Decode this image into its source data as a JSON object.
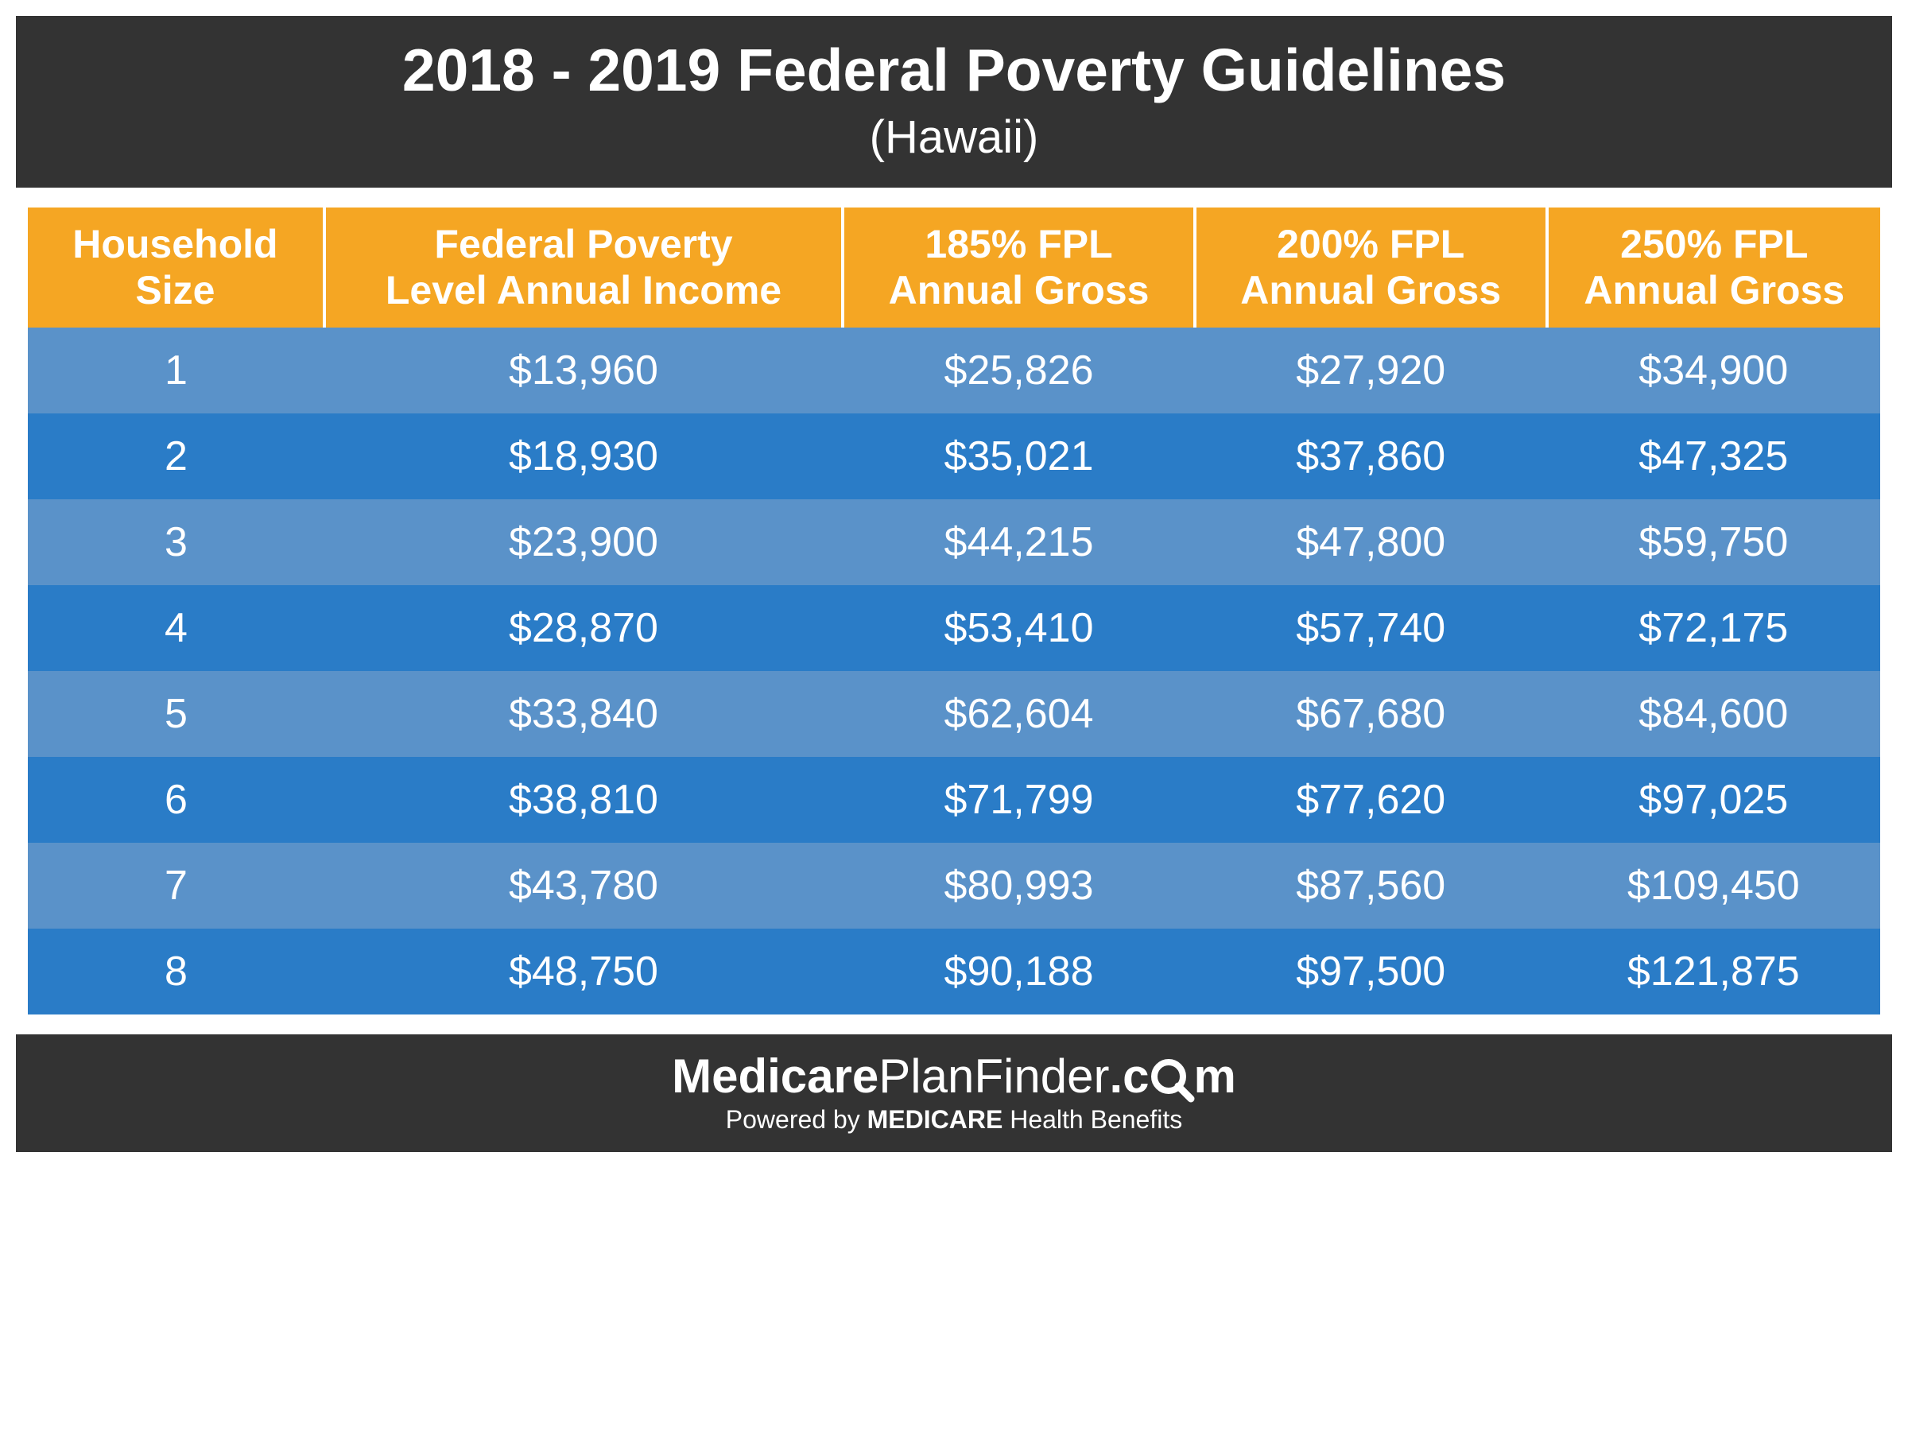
{
  "header": {
    "title": "2018 - 2019 Federal Poverty Guidelines",
    "subtitle": "(Hawaii)"
  },
  "table": {
    "type": "table",
    "header_bg": "#f5a623",
    "row_light_bg": "#5a92c9",
    "row_dark_bg": "#2a7cc7",
    "text_color": "#ffffff",
    "columns": [
      {
        "line1": "Household",
        "line2": "Size"
      },
      {
        "line1": "Federal Poverty",
        "line2": "Level Annual Income"
      },
      {
        "line1": "185% FPL",
        "line2": "Annual Gross"
      },
      {
        "line1": "200% FPL",
        "line2": "Annual Gross"
      },
      {
        "line1": "250% FPL",
        "line2": "Annual Gross"
      }
    ],
    "rows": [
      [
        "1",
        "$13,960",
        "$25,826",
        "$27,920",
        "$34,900"
      ],
      [
        "2",
        "$18,930",
        "$35,021",
        "$37,860",
        "$47,325"
      ],
      [
        "3",
        "$23,900",
        "$44,215",
        "$47,800",
        "$59,750"
      ],
      [
        "4",
        "$28,870",
        "$53,410",
        "$57,740",
        "$72,175"
      ],
      [
        "5",
        "$33,840",
        "$62,604",
        "$67,680",
        "$84,600"
      ],
      [
        "6",
        "$38,810",
        "$71,799",
        "$77,620",
        "$97,025"
      ],
      [
        "7",
        "$43,780",
        "$80,993",
        "$87,560",
        "$109,450"
      ],
      [
        "8",
        "$48,750",
        "$90,188",
        "$97,500",
        "$121,875"
      ]
    ]
  },
  "footer": {
    "brand_bold1": "Medicare",
    "brand_light1": "Plan",
    "brand_light2": "Finder",
    "brand_bold2": ".c",
    "brand_bold3": "m",
    "tag_pre": "Powered by ",
    "tag_bold": "MEDICARE",
    "tag_post": " Health Benefits"
  },
  "colors": {
    "header_bg": "#333333",
    "footer_bg": "#333333",
    "page_bg": "#ffffff"
  }
}
